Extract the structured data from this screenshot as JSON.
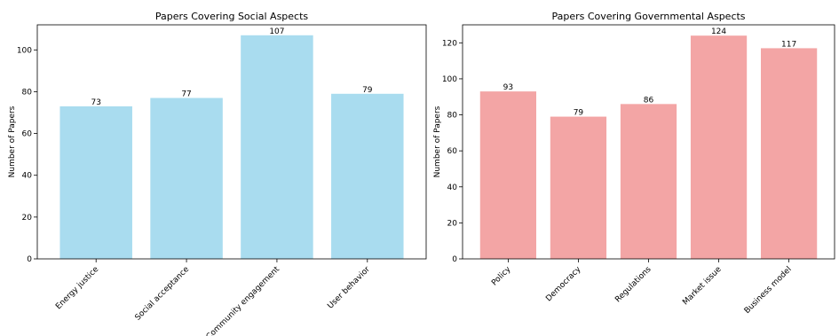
{
  "chart_data": [
    {
      "type": "bar",
      "title": "Papers Covering Social Aspects",
      "xlabel": "",
      "ylabel": "Number of Papers",
      "categories": [
        "Energy justice",
        "Social acceptance",
        "Community engagement",
        "User behavior"
      ],
      "values": [
        73,
        77,
        107,
        79
      ],
      "data_labels": [
        "73",
        "77",
        "107",
        "79"
      ],
      "ylim": [
        0,
        112
      ],
      "yticks": [
        0,
        20,
        40,
        60,
        80,
        100
      ],
      "grid": false,
      "color": "#a9dcef"
    },
    {
      "type": "bar",
      "title": "Papers Covering Governmental Aspects",
      "xlabel": "",
      "ylabel": "Number of Papers",
      "categories": [
        "Policy",
        "Democracy",
        "Regulations",
        "Market issue",
        "Business model"
      ],
      "values": [
        93,
        79,
        86,
        124,
        117
      ],
      "data_labels": [
        "93",
        "79",
        "86",
        "124",
        "117"
      ],
      "ylim": [
        0,
        130
      ],
      "yticks": [
        0,
        20,
        40,
        60,
        80,
        100,
        120
      ],
      "grid": false,
      "color": "#f3a5a5"
    }
  ]
}
